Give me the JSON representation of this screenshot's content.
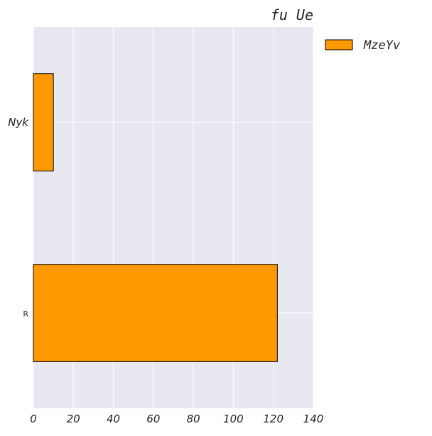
{
  "chart_data": {
    "type": "bar",
    "orientation": "horizontal",
    "title": "fu Ue",
    "xlabel": "",
    "ylabel": "",
    "categories": [
      "Nyk",
      "R"
    ],
    "series": [
      {
        "name": "MzeYv",
        "values": [
          10,
          122
        ],
        "color": "#ff9900"
      }
    ],
    "xlim": [
      0,
      140
    ],
    "xticks": [
      0,
      20,
      40,
      60,
      80,
      100,
      120,
      140
    ],
    "grid": true,
    "legend_position": "outside-top-right",
    "background_color": "#e8e8f0",
    "grid_color": "#ffffff",
    "edge_color": "#000000"
  }
}
